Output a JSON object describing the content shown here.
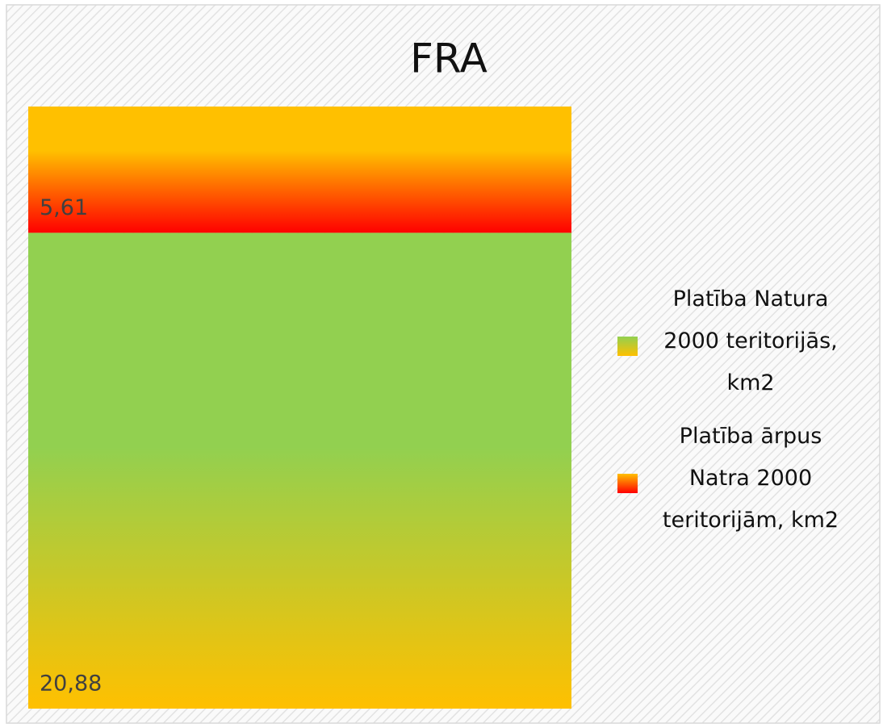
{
  "chart_data": {
    "type": "bar",
    "stacked": true,
    "title": "FRA",
    "categories": [
      null
    ],
    "series": [
      {
        "name": "Platība Natura 2000 teritorijās, km2",
        "gradient": [
          "#92d050",
          "#ffc000"
        ],
        "values": [
          20.88
        ],
        "value_labels": [
          "20,88"
        ]
      },
      {
        "name": "Platība ārpus Natra 2000 teritorijām, km2",
        "gradient": [
          "#ffc000",
          "#ff0000"
        ],
        "values": [
          5.61
        ],
        "value_labels": [
          "5,61"
        ]
      }
    ],
    "legend": "right"
  }
}
